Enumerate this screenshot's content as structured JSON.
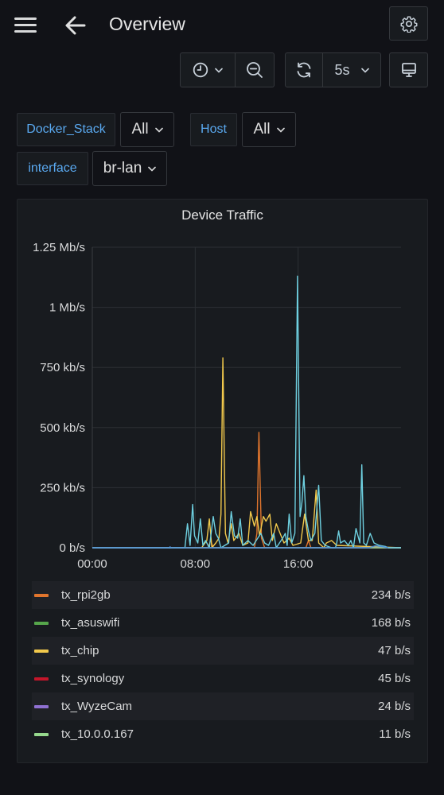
{
  "header": {
    "title": "Overview"
  },
  "toolbar": {
    "refresh_interval": "5s"
  },
  "variables": [
    {
      "label": "Docker_Stack",
      "value": "All"
    },
    {
      "label": "Host",
      "value": "All"
    },
    {
      "label": "interface",
      "value": "br-lan"
    }
  ],
  "panel": {
    "title": "Device Traffic"
  },
  "chart_data": {
    "type": "line",
    "title": "Device Traffic",
    "y_unit": "b/s",
    "y_ticks": [
      "0 b/s",
      "250 kb/s",
      "500 kb/s",
      "750 kb/s",
      "1 Mb/s",
      "1.25 Mb/s"
    ],
    "x_ticks": [
      "00:00",
      "08:00",
      "16:00"
    ],
    "ylim": [
      0,
      1250000
    ],
    "xlim_hours": [
      0,
      24
    ],
    "grid": true,
    "legend_position": "bottom",
    "series": [
      {
        "name": "tx_rpi2gb",
        "color": "#e0752d",
        "current": "234 b/s",
        "points": [
          [
            0,
            0
          ],
          [
            9,
            0
          ],
          [
            9.2,
            30000
          ],
          [
            9.4,
            0
          ],
          [
            12.6,
            0
          ],
          [
            12.8,
            60000
          ],
          [
            12.95,
            480000
          ],
          [
            13.15,
            40000
          ],
          [
            13.4,
            0
          ],
          [
            16.6,
            0
          ],
          [
            16.8,
            30000
          ],
          [
            17,
            0
          ],
          [
            24,
            0
          ]
        ]
      },
      {
        "name": "tx_asuswifi",
        "color": "#56a64b",
        "current": "168 b/s",
        "points": [
          [
            0,
            0
          ],
          [
            24,
            0
          ]
        ]
      },
      {
        "name": "tx_chip",
        "color": "#f2c94c",
        "current": "47 b/s",
        "points": [
          [
            0,
            0
          ],
          [
            8.5,
            0
          ],
          [
            8.9,
            30000
          ],
          [
            9.1,
            120000
          ],
          [
            9.3,
            0
          ],
          [
            9.6,
            20000
          ],
          [
            9.85,
            40000
          ],
          [
            10,
            140000
          ],
          [
            10.15,
            790000
          ],
          [
            10.35,
            60000
          ],
          [
            10.55,
            20000
          ],
          [
            10.8,
            100000
          ],
          [
            11,
            30000
          ],
          [
            11.4,
            60000
          ],
          [
            11.7,
            10000
          ],
          [
            12.1,
            20000
          ],
          [
            12.3,
            150000
          ],
          [
            12.6,
            90000
          ],
          [
            12.8,
            130000
          ],
          [
            13,
            50000
          ],
          [
            13.3,
            130000
          ],
          [
            13.5,
            110000
          ],
          [
            13.8,
            140000
          ],
          [
            14,
            30000
          ],
          [
            14.3,
            100000
          ],
          [
            14.6,
            60000
          ],
          [
            14.9,
            20000
          ],
          [
            15.3,
            40000
          ],
          [
            15.6,
            10000
          ],
          [
            16.2,
            20000
          ],
          [
            16.5,
            140000
          ],
          [
            16.8,
            30000
          ],
          [
            17.1,
            30000
          ],
          [
            17.4,
            240000
          ],
          [
            17.6,
            20000
          ],
          [
            18,
            0
          ],
          [
            18.2,
            20000
          ],
          [
            18.6,
            30000
          ],
          [
            19,
            10000
          ],
          [
            24,
            0
          ]
        ]
      },
      {
        "name": "tx_synology",
        "color": "#c4162a",
        "current": "45 b/s",
        "points": [
          [
            0,
            0
          ],
          [
            24,
            0
          ]
        ]
      },
      {
        "name": "tx_WyzeCam",
        "color": "#8f70d1",
        "current": "24 b/s",
        "points": [
          [
            0,
            0
          ],
          [
            24,
            0
          ]
        ]
      },
      {
        "name": "tx_10.0.0.167",
        "color": "#96d98d",
        "current": "11 b/s",
        "points": [
          [
            0,
            0
          ],
          [
            24,
            0
          ]
        ]
      },
      {
        "name": "",
        "color": "#6ed0e0",
        "current": "",
        "points": [
          [
            0,
            0
          ],
          [
            7.2,
            0
          ],
          [
            7.4,
            100000
          ],
          [
            7.6,
            10000
          ],
          [
            7.8,
            180000
          ],
          [
            7.95,
            50000
          ],
          [
            8.2,
            20000
          ],
          [
            8.4,
            120000
          ],
          [
            8.6,
            10000
          ],
          [
            8.8,
            30000
          ],
          [
            9.1,
            0
          ],
          [
            9.4,
            130000
          ],
          [
            9.6,
            60000
          ],
          [
            9.8,
            40000
          ],
          [
            10,
            0
          ],
          [
            10.6,
            20000
          ],
          [
            10.8,
            150000
          ],
          [
            11.05,
            50000
          ],
          [
            11.3,
            40000
          ],
          [
            11.5,
            120000
          ],
          [
            11.7,
            10000
          ],
          [
            12.1,
            30000
          ],
          [
            12.5,
            10000
          ],
          [
            13.1,
            60000
          ],
          [
            13.4,
            20000
          ],
          [
            13.7,
            10000
          ],
          [
            14.1,
            60000
          ],
          [
            14.3,
            0
          ],
          [
            14.8,
            40000
          ],
          [
            15,
            60000
          ],
          [
            15.15,
            10000
          ],
          [
            15.3,
            140000
          ],
          [
            15.5,
            20000
          ],
          [
            15.75,
            60000
          ],
          [
            15.95,
            1130000
          ],
          [
            16.15,
            130000
          ],
          [
            16.3,
            190000
          ],
          [
            16.45,
            300000
          ],
          [
            16.6,
            130000
          ],
          [
            16.8,
            70000
          ],
          [
            17,
            30000
          ],
          [
            17.3,
            60000
          ],
          [
            17.6,
            260000
          ],
          [
            17.8,
            30000
          ],
          [
            18.1,
            10000
          ],
          [
            18.6,
            0
          ],
          [
            18.9,
            0
          ],
          [
            19,
            20000
          ],
          [
            19.15,
            70000
          ],
          [
            19.3,
            20000
          ],
          [
            19.6,
            30000
          ],
          [
            19.9,
            10000
          ],
          [
            20.1,
            30000
          ],
          [
            20.3,
            0
          ],
          [
            20.5,
            80000
          ],
          [
            20.8,
            20000
          ],
          [
            20.95,
            345000
          ],
          [
            21.1,
            20000
          ],
          [
            21.3,
            10000
          ],
          [
            21.6,
            60000
          ],
          [
            21.9,
            20000
          ],
          [
            22.3,
            10000
          ],
          [
            22.8,
            5000
          ],
          [
            23,
            0
          ],
          [
            24,
            0
          ]
        ]
      }
    ],
    "hidden_series": [
      {
        "color": "#4f8fd6",
        "points": [
          [
            0,
            0
          ],
          [
            6,
            0
          ],
          [
            6.05,
            4000
          ],
          [
            6.1,
            0
          ],
          [
            21.5,
            0
          ],
          [
            22,
            8000
          ],
          [
            22.5,
            5000
          ],
          [
            23,
            0
          ]
        ]
      }
    ]
  }
}
